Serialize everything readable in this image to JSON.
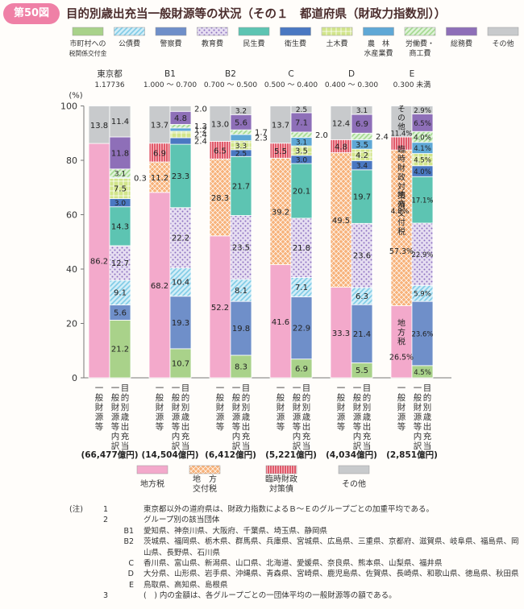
{
  "header": {
    "badge": "第50図",
    "title": "目的別歳出充当一般財源等の状況（その１　都道府県（財政力指数別））"
  },
  "legend_top": [
    {
      "label": "市町村への\n税関係交付金",
      "pattern": "solid",
      "color": "#a9d28a"
    },
    {
      "label": "公債費",
      "pattern": "diag",
      "color": "#7fcbe6"
    },
    {
      "label": "警察費",
      "pattern": "solid",
      "color": "#6f8fc9"
    },
    {
      "label": "教育費",
      "pattern": "dots",
      "color": "#c9b6e0"
    },
    {
      "label": "民生費",
      "pattern": "solid",
      "color": "#5dc4b2"
    },
    {
      "label": "衛生費",
      "pattern": "solid",
      "color": "#4a78c2"
    },
    {
      "label": "土木費",
      "pattern": "grid",
      "color": "#d2e58a"
    },
    {
      "label": "農　林\n水産業費",
      "pattern": "solid",
      "color": "#5fa8d6"
    },
    {
      "label": "労働費・\n商工費",
      "pattern": "diag",
      "color": "#a3d98f"
    },
    {
      "label": "総務費",
      "pattern": "solid",
      "color": "#8e6fb8"
    },
    {
      "label": "その他",
      "pattern": "solid",
      "color": "#c8cacc"
    }
  ],
  "legend_bottom": [
    {
      "label": "地方税",
      "pattern": "solid",
      "color": "#f3a9cb"
    },
    {
      "label": "地　方\n交付税",
      "pattern": "check",
      "color": "#f7b27a"
    },
    {
      "label": "臨時財政\n対策債",
      "pattern": "vstripe",
      "color": "#e05a6a"
    },
    {
      "label": "その他",
      "pattern": "solid",
      "color": "#c8cacc"
    }
  ],
  "chart_data": {
    "type": "bar",
    "stacked": true,
    "ylabel": "(%)",
    "ylim": [
      0,
      100
    ],
    "yticks": [
      0,
      20,
      40,
      60,
      80,
      100
    ],
    "groups": [
      {
        "name": "東京都",
        "sub": "1.17736",
        "total": "(66,477億円)",
        "revenue": [
          {
            "item": "地方税",
            "value": 86.2,
            "label": "86.2"
          },
          {
            "item": "その他",
            "value": 13.8,
            "label": "13.8"
          }
        ],
        "expenditure": [
          {
            "item": "市町村への税関係交付金",
            "value": 21.2,
            "label": "21.2"
          },
          {
            "item": "警察費",
            "value": 5.6,
            "label": "5.6"
          },
          {
            "item": "公債費",
            "value": 9.1,
            "label": "9.1"
          },
          {
            "item": "教育費",
            "value": 12.7,
            "label": "12.7"
          },
          {
            "item": "民生費",
            "value": 14.3,
            "label": "14.3"
          },
          {
            "item": "衛生費",
            "value": 3.0,
            "label": "3.0"
          },
          {
            "item": "土木費",
            "value": 7.5,
            "label": "7.5"
          },
          {
            "item": "農林水産業費",
            "value": 0.3,
            "label": "0.3"
          },
          {
            "item": "労働費・商工費",
            "value": 3.1,
            "label": "3.1"
          },
          {
            "item": "総務費",
            "value": 11.8,
            "label": "11.8"
          },
          {
            "item": "その他",
            "value": 11.4,
            "label": "11.4"
          }
        ]
      },
      {
        "name": "B1",
        "sub": "1.000 ～ 0.700",
        "total": "(14,504億円)",
        "revenue": [
          {
            "item": "地方税",
            "value": 68.2,
            "label": "68.2"
          },
          {
            "item": "地方交付税",
            "value": 11.2,
            "label": "11.2"
          },
          {
            "item": "臨時財政対策債",
            "value": 6.9,
            "label": "6.9"
          },
          {
            "item": "その他",
            "value": 13.7,
            "label": "13.7"
          }
        ],
        "expenditure": [
          {
            "item": "市町村への税関係交付金",
            "value": 10.7,
            "label": "10.7"
          },
          {
            "item": "警察費",
            "value": 19.3,
            "label": "19.3"
          },
          {
            "item": "公債費",
            "value": 10.4,
            "label": "10.4"
          },
          {
            "item": "教育費",
            "value": 22.2,
            "label": "22.2"
          },
          {
            "item": "民生費",
            "value": 23.3,
            "label": "23.3"
          },
          {
            "item": "衛生費",
            "value": 2.4,
            "label": "2.4"
          },
          {
            "item": "土木費",
            "value": 2.4,
            "label": "2.4"
          },
          {
            "item": "農林水産業費",
            "value": 1.2,
            "label": "1.2"
          },
          {
            "item": "労働費・商工費",
            "value": 1.3,
            "label": "1.3"
          },
          {
            "item": "総務費",
            "value": 4.8,
            "label": "4.8"
          },
          {
            "item": "その他",
            "value": 2.0,
            "label": "2.0"
          }
        ]
      },
      {
        "name": "B2",
        "sub": "0.700 ～ 0.500",
        "total": "(6,412億円)",
        "revenue": [
          {
            "item": "地方税",
            "value": 52.2,
            "label": "52.2"
          },
          {
            "item": "地方交付税",
            "value": 28.3,
            "label": "28.3"
          },
          {
            "item": "臨時財政対策債",
            "value": 6.5,
            "label": "6.5"
          },
          {
            "item": "その他",
            "value": 13.0,
            "label": "13.0"
          }
        ],
        "expenditure": [
          {
            "item": "市町村への税関係交付金",
            "value": 8.3,
            "label": "8.3"
          },
          {
            "item": "警察費",
            "value": 19.8,
            "label": "19.8"
          },
          {
            "item": "公債費",
            "value": 8.1,
            "label": "8.1"
          },
          {
            "item": "教育費",
            "value": 23.5,
            "label": "23.5"
          },
          {
            "item": "民生費",
            "value": 21.7,
            "label": "21.7"
          },
          {
            "item": "衛生費",
            "value": 2.5,
            "label": "2.5"
          },
          {
            "item": "土木費",
            "value": 3.3,
            "label": "3.3"
          },
          {
            "item": "農林水産業費",
            "value": 2.3,
            "label": "2.3"
          },
          {
            "item": "労働費・商工費",
            "value": 1.7,
            "label": "1.7"
          },
          {
            "item": "総務費",
            "value": 5.6,
            "label": "5.6"
          },
          {
            "item": "その他",
            "value": 3.2,
            "label": "3.2"
          }
        ]
      },
      {
        "name": "C",
        "sub": "0.500 ～ 0.400",
        "total": "(5,221億円)",
        "revenue": [
          {
            "item": "地方税",
            "value": 41.6,
            "label": "41.6"
          },
          {
            "item": "地方交付税",
            "value": 39.2,
            "label": "39.2"
          },
          {
            "item": "臨時財政対策債",
            "value": 5.5,
            "label": "5.5"
          },
          {
            "item": "その他",
            "value": 13.7,
            "label": "13.7"
          }
        ],
        "expenditure": [
          {
            "item": "市町村への税関係交付金",
            "value": 6.9,
            "label": "6.9"
          },
          {
            "item": "警察費",
            "value": 22.9,
            "label": "22.9"
          },
          {
            "item": "公債費",
            "value": 7.1,
            "label": "7.1"
          },
          {
            "item": "教育費",
            "value": 21.8,
            "label": "21.8"
          },
          {
            "item": "民生費",
            "value": 20.1,
            "label": "20.1"
          },
          {
            "item": "衛生費",
            "value": 3.0,
            "label": "3.0"
          },
          {
            "item": "土木費",
            "value": 3.5,
            "label": "3.5"
          },
          {
            "item": "農林水産業費",
            "value": 3.1,
            "label": "3.1"
          },
          {
            "item": "労働費・商工費",
            "value": 2.0,
            "label": "2.0"
          },
          {
            "item": "総務費",
            "value": 7.1,
            "label": "7.1"
          },
          {
            "item": "その他",
            "value": 2.5,
            "label": "2.5"
          }
        ]
      },
      {
        "name": "D",
        "sub": "0.400 ～ 0.300",
        "total": "(4,034億円)",
        "revenue": [
          {
            "item": "地方税",
            "value": 33.3,
            "label": "33.3"
          },
          {
            "item": "地方交付税",
            "value": 49.5,
            "label": "49.5"
          },
          {
            "item": "臨時財政対策債",
            "value": 4.8,
            "label": "4.8"
          },
          {
            "item": "その他",
            "value": 12.4,
            "label": "12.4"
          }
        ],
        "expenditure": [
          {
            "item": "市町村への税関係交付金",
            "value": 5.5,
            "label": "5.5"
          },
          {
            "item": "警察費",
            "value": 21.4,
            "label": "21.4"
          },
          {
            "item": "公債費",
            "value": 6.3,
            "label": "6.3"
          },
          {
            "item": "教育費",
            "value": 23.6,
            "label": "23.6"
          },
          {
            "item": "民生費",
            "value": 19.7,
            "label": "19.7"
          },
          {
            "item": "衛生費",
            "value": 3.4,
            "label": "3.4"
          },
          {
            "item": "土木費",
            "value": 4.2,
            "label": "4.2"
          },
          {
            "item": "農林水産業費",
            "value": 3.5,
            "label": "3.5"
          },
          {
            "item": "労働費・商工費",
            "value": 2.4,
            "label": "2.4"
          },
          {
            "item": "総務費",
            "value": 6.9,
            "label": "6.9"
          },
          {
            "item": "その他",
            "value": 3.1,
            "label": "3.1"
          }
        ]
      },
      {
        "name": "E",
        "sub": "0.300 未満",
        "total": "(2,851億円)",
        "revenue": [
          {
            "item": "地方税",
            "value": 26.5,
            "label": "26.5%"
          },
          {
            "item": "地方交付税",
            "value": 57.3,
            "label": "57.3%"
          },
          {
            "item": "臨時財政対策債",
            "value": 4.8,
            "label": "4.8%"
          },
          {
            "item": "その他",
            "value": 11.4,
            "label": "11.4%"
          }
        ],
        "expenditure": [
          {
            "item": "市町村への税関係交付金",
            "value": 4.5,
            "label": "4.5%"
          },
          {
            "item": "警察費",
            "value": 23.6,
            "label": "23.6%"
          },
          {
            "item": "公債費",
            "value": 5.9,
            "label": "5.9%"
          },
          {
            "item": "教育費",
            "value": 22.9,
            "label": "22.9%"
          },
          {
            "item": "民生費",
            "value": 17.1,
            "label": "17.1%"
          },
          {
            "item": "衛生費",
            "value": 4.0,
            "label": "4.0%"
          },
          {
            "item": "土木費",
            "value": 4.5,
            "label": "4.5%"
          },
          {
            "item": "農林水産業費",
            "value": 4.1,
            "label": "4.1%"
          },
          {
            "item": "労働費・商工費",
            "value": 4.0,
            "label": "4.0%"
          },
          {
            "item": "総務費",
            "value": 6.5,
            "label": "6.5%"
          },
          {
            "item": "その他",
            "value": 2.9,
            "label": "2.9%"
          }
        ]
      }
    ],
    "bar_labels": {
      "revenue": "一般財源等",
      "expenditure": "目的別歳出充当一般財源等内訳"
    },
    "e_inbar_labels": {
      "地方税": "地方税",
      "地方交付税": "地方交付税",
      "臨時財政対策債": "臨時財政対策債",
      "その他": "その他"
    }
  },
  "notes": {
    "lead": "(注)",
    "items": [
      {
        "num": "1",
        "text": "東京都以外の道府県は、財政力指数によるＢ～Ｅのグループごとの加重平均である。"
      },
      {
        "num": "2",
        "text": "グループ別の該当団体"
      },
      {
        "sub": "B1",
        "text": "愛知県、神奈川県、大阪府、千葉県、埼玉県、静岡県"
      },
      {
        "sub": "B2",
        "text": "茨城県、福岡県、栃木県、群馬県、兵庫県、宮城県、広島県、三重県、京都府、滋賀県、岐阜県、福島県、岡山県、長野県、石川県"
      },
      {
        "sub": "C",
        "text": "香川県、富山県、新潟県、山口県、北海道、愛媛県、奈良県、熊本県、山梨県、福井県"
      },
      {
        "sub": "D",
        "text": "大分県、山形県、岩手県、沖縄県、青森県、宮崎県、鹿児島県、佐賀県、長崎県、和歌山県、徳島県、秋田県"
      },
      {
        "sub": "E",
        "text": "鳥取県、高知県、島根県"
      },
      {
        "num": "3",
        "text": "(　) 内の金額は、各グループごとの一団体平均の一般財源等の額である。"
      }
    ]
  }
}
